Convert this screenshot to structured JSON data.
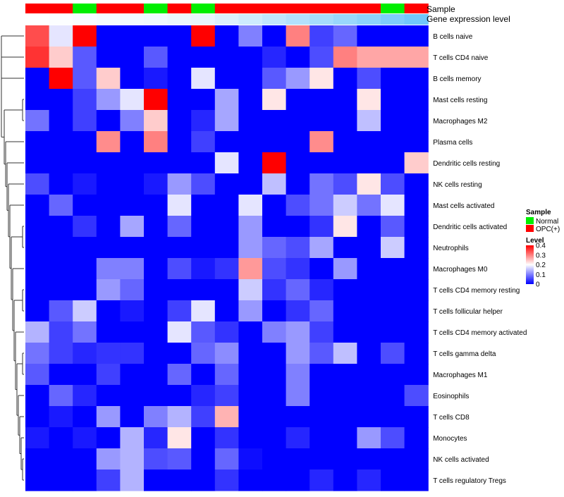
{
  "chart_data": {
    "type": "heatmap",
    "title": "",
    "annotation_tracks": [
      "Sample",
      "Gene expression level"
    ],
    "sample_groups": [
      "OPC(+)",
      "OPC(+)",
      "Normal",
      "OPC(+)",
      "OPC(+)",
      "Normal",
      "OPC(+)",
      "Normal",
      "OPC(+)",
      "OPC(+)",
      "OPC(+)",
      "OPC(+)",
      "OPC(+)",
      "OPC(+)",
      "OPC(+)",
      "Normal",
      "OPC(+)"
    ],
    "gene_expression_level": [
      0.0,
      0.02,
      0.04,
      0.06,
      0.08,
      0.1,
      0.12,
      0.14,
      0.22,
      0.3,
      0.38,
      0.46,
      0.54,
      0.62,
      0.7,
      0.78,
      0.86
    ],
    "rows": [
      "B cells naive",
      "T cells CD4 naive",
      "B cells memory",
      "Mast cells resting",
      "Macrophages M2",
      "Plasma cells",
      "Dendritic cells resting",
      "NK cells resting",
      "Mast cells activated",
      "Dendritic cells activated",
      "Neutrophils",
      "Macrophages M0",
      "T cells CD4 memory resting",
      "T cells follicular helper",
      "T cells CD4 memory activated",
      "T cells gamma delta",
      "Macrophages M1",
      "Eosinophils",
      "T cells CD8",
      "Monocytes",
      "NK cells activated",
      "T cells regulatory  Tregs"
    ],
    "values": [
      [
        0.34,
        0.18,
        0.4,
        0.0,
        0.0,
        0.0,
        0.0,
        0.4,
        0.0,
        0.1,
        0.0,
        0.3,
        0.05,
        0.08,
        0.0,
        0.0,
        0.0
      ],
      [
        0.36,
        0.24,
        0.07,
        0.0,
        0.0,
        0.07,
        0.0,
        0.0,
        0.0,
        0.0,
        0.03,
        0.0,
        0.06,
        0.3,
        0.27,
        0.27,
        0.27
      ],
      [
        0.0,
        0.4,
        0.07,
        0.24,
        0.0,
        0.02,
        0.0,
        0.18,
        0.0,
        0.0,
        0.07,
        0.12,
        0.22,
        0.0,
        0.06,
        0.0,
        0.0
      ],
      [
        0.0,
        0.0,
        0.05,
        0.12,
        0.18,
        0.42,
        0.0,
        0.0,
        0.13,
        0.0,
        0.22,
        0.0,
        0.0,
        0.0,
        0.22,
        0.0,
        0.0
      ],
      [
        0.09,
        0.0,
        0.05,
        0.0,
        0.1,
        0.24,
        0.0,
        0.03,
        0.13,
        0.0,
        0.0,
        0.0,
        0.0,
        0.0,
        0.15,
        0.0,
        0.0
      ],
      [
        0.0,
        0.0,
        0.0,
        0.29,
        0.0,
        0.3,
        0.0,
        0.05,
        0.0,
        0.0,
        0.0,
        0.0,
        0.29,
        0.0,
        0.0,
        0.0,
        0.0
      ],
      [
        0.0,
        0.0,
        0.0,
        0.0,
        0.0,
        0.0,
        0.0,
        0.0,
        0.18,
        0.0,
        0.42,
        0.0,
        0.0,
        0.0,
        0.0,
        0.0,
        0.24
      ],
      [
        0.06,
        0.0,
        0.02,
        0.0,
        0.0,
        0.02,
        0.12,
        0.06,
        0.0,
        0.0,
        0.15,
        0.0,
        0.09,
        0.06,
        0.22,
        0.06,
        0.0
      ],
      [
        0.0,
        0.08,
        0.0,
        0.0,
        0.0,
        0.0,
        0.18,
        0.0,
        0.0,
        0.18,
        0.0,
        0.06,
        0.09,
        0.16,
        0.09,
        0.18,
        0.0
      ],
      [
        0.0,
        0.0,
        0.04,
        0.0,
        0.13,
        0.0,
        0.08,
        0.0,
        0.0,
        0.12,
        0.0,
        0.0,
        0.04,
        0.22,
        0.0,
        0.07,
        0.0
      ],
      [
        0.0,
        0.0,
        0.0,
        0.0,
        0.0,
        0.0,
        0.0,
        0.0,
        0.0,
        0.12,
        0.08,
        0.06,
        0.13,
        0.0,
        0.0,
        0.16,
        0.0
      ],
      [
        0.0,
        0.0,
        0.0,
        0.1,
        0.1,
        0.0,
        0.06,
        0.02,
        0.04,
        0.28,
        0.06,
        0.04,
        0.0,
        0.12,
        0.0,
        0.0,
        0.0
      ],
      [
        0.0,
        0.0,
        0.0,
        0.12,
        0.08,
        0.0,
        0.0,
        0.0,
        0.0,
        0.16,
        0.04,
        0.08,
        0.03,
        0.0,
        0.0,
        0.0,
        0.0
      ],
      [
        0.0,
        0.07,
        0.16,
        0.0,
        0.02,
        0.0,
        0.05,
        0.18,
        0.0,
        0.12,
        0.0,
        0.04,
        0.08,
        0.0,
        0.0,
        0.0,
        0.0
      ],
      [
        0.14,
        0.05,
        0.09,
        0.0,
        0.0,
        0.0,
        0.18,
        0.07,
        0.04,
        0.0,
        0.1,
        0.12,
        0.05,
        0.0,
        0.0,
        0.0,
        0.0
      ],
      [
        0.09,
        0.05,
        0.03,
        0.04,
        0.04,
        0.0,
        0.0,
        0.08,
        0.11,
        0.0,
        0.0,
        0.12,
        0.07,
        0.15,
        0.0,
        0.06,
        0.0
      ],
      [
        0.07,
        0.0,
        0.0,
        0.05,
        0.0,
        0.0,
        0.08,
        0.0,
        0.08,
        0.0,
        0.0,
        0.1,
        0.0,
        0.0,
        0.0,
        0.0,
        0.0
      ],
      [
        0.0,
        0.08,
        0.03,
        0.0,
        0.0,
        0.0,
        0.0,
        0.03,
        0.05,
        0.0,
        0.0,
        0.1,
        0.0,
        0.0,
        0.0,
        0.0,
        0.06
      ],
      [
        0.0,
        0.02,
        0.0,
        0.12,
        0.0,
        0.1,
        0.14,
        0.05,
        0.26,
        0.0,
        0.0,
        0.0,
        0.0,
        0.0,
        0.0,
        0.0,
        0.0
      ],
      [
        0.02,
        0.0,
        0.02,
        0.0,
        0.14,
        0.03,
        0.22,
        0.0,
        0.04,
        0.0,
        0.0,
        0.03,
        0.0,
        0.0,
        0.12,
        0.06,
        0.0
      ],
      [
        0.0,
        0.0,
        0.0,
        0.12,
        0.14,
        0.06,
        0.07,
        0.0,
        0.08,
        0.01,
        0.0,
        0.0,
        0.0,
        0.0,
        0.0,
        0.0,
        0.0
      ],
      [
        0.0,
        0.0,
        0.0,
        0.05,
        0.14,
        0.0,
        0.0,
        0.0,
        0.04,
        0.0,
        0.0,
        0.0,
        0.03,
        0.0,
        0.03,
        0.0,
        0.0
      ]
    ],
    "legend": {
      "sample_title": "Sample",
      "sample_entries": [
        {
          "label": "Normal",
          "color": "#00ee00"
        },
        {
          "label": "OPC(+)",
          "color": "#ff0000"
        }
      ],
      "level_title": "Level",
      "level_ticks": [
        "0.4",
        "0.3",
        "0.2",
        "0.1",
        "0"
      ]
    },
    "scale": {
      "min": 0,
      "max": 0.4,
      "low": "#0000ff",
      "mid": "#ffffff",
      "high": "#ff0000"
    }
  }
}
